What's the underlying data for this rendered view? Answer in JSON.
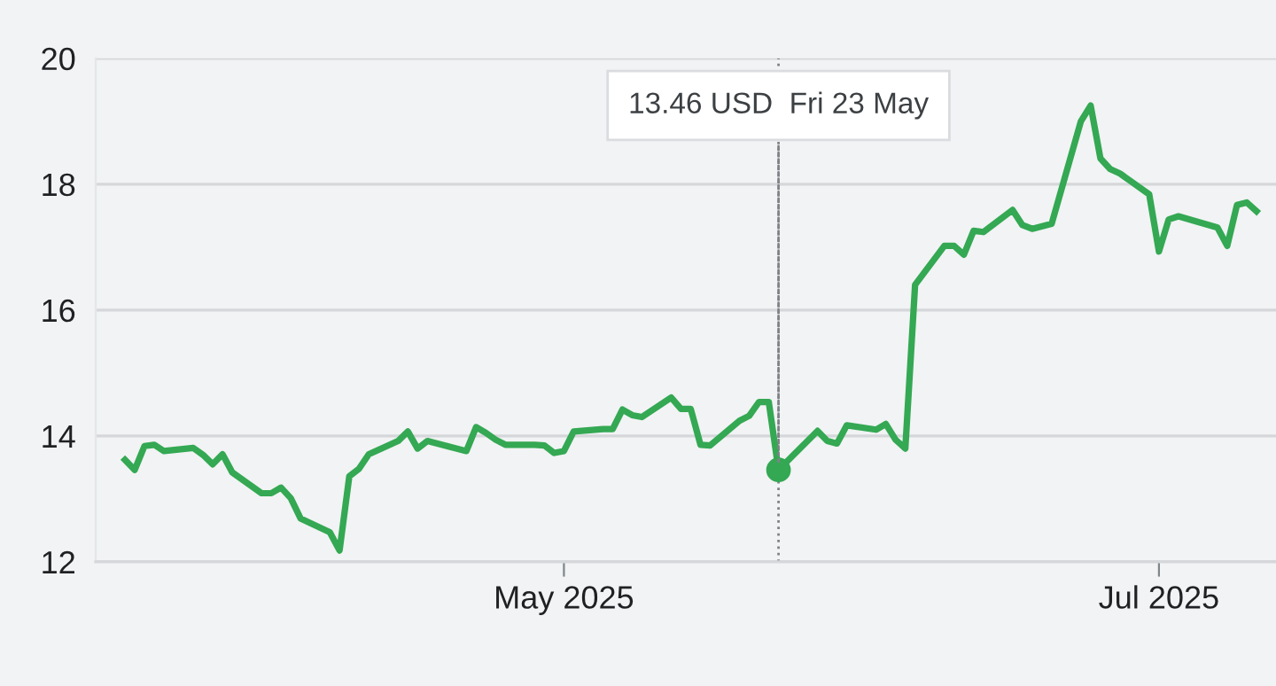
{
  "chart_data": {
    "type": "line",
    "x": [
      "2025-03-17",
      "2025-03-18",
      "2025-03-19",
      "2025-03-20",
      "2025-03-21",
      "2025-03-24",
      "2025-03-25",
      "2025-03-26",
      "2025-03-27",
      "2025-03-28",
      "2025-03-31",
      "2025-04-01",
      "2025-04-02",
      "2025-04-03",
      "2025-04-04",
      "2025-04-07",
      "2025-04-08",
      "2025-04-09",
      "2025-04-10",
      "2025-04-11",
      "2025-04-14",
      "2025-04-15",
      "2025-04-16",
      "2025-04-17",
      "2025-04-21",
      "2025-04-22",
      "2025-04-23",
      "2025-04-24",
      "2025-04-25",
      "2025-04-28",
      "2025-04-29",
      "2025-04-30",
      "2025-05-01",
      "2025-05-02",
      "2025-05-05",
      "2025-05-06",
      "2025-05-07",
      "2025-05-08",
      "2025-05-09",
      "2025-05-12",
      "2025-05-13",
      "2025-05-14",
      "2025-05-15",
      "2025-05-16",
      "2025-05-19",
      "2025-05-20",
      "2025-05-21",
      "2025-05-22",
      "2025-05-23",
      "2025-05-27",
      "2025-05-28",
      "2025-05-29",
      "2025-05-30",
      "2025-06-02",
      "2025-06-03",
      "2025-06-04",
      "2025-06-05",
      "2025-06-06",
      "2025-06-09",
      "2025-06-10",
      "2025-06-11",
      "2025-06-12",
      "2025-06-13",
      "2025-06-16",
      "2025-06-17",
      "2025-06-18",
      "2025-06-20",
      "2025-06-23",
      "2025-06-24",
      "2025-06-25",
      "2025-06-26",
      "2025-06-27",
      "2025-06-30",
      "2025-07-01",
      "2025-07-02",
      "2025-07-03",
      "2025-07-07",
      "2025-07-08",
      "2025-07-09",
      "2025-07-10",
      "2025-07-11"
    ],
    "series": [
      {
        "color": "#34a853",
        "values": [
          13.62,
          13.46,
          13.84,
          13.86,
          13.76,
          13.81,
          13.7,
          13.55,
          13.71,
          13.42,
          13.09,
          13.09,
          13.18,
          13.01,
          12.69,
          12.47,
          12.18,
          13.36,
          13.48,
          13.71,
          13.92,
          14.07,
          13.8,
          13.92,
          13.76,
          14.14,
          14.05,
          13.94,
          13.86,
          13.86,
          13.85,
          13.73,
          13.76,
          14.07,
          14.11,
          14.11,
          14.42,
          14.33,
          14.3,
          14.61,
          14.43,
          14.43,
          13.86,
          13.85,
          14.24,
          14.32,
          14.54,
          14.54,
          13.46,
          14.08,
          13.92,
          13.88,
          14.17,
          14.1,
          14.19,
          13.94,
          13.8,
          16.4,
          17.02,
          17.02,
          16.88,
          17.26,
          17.24,
          17.59,
          17.35,
          17.29,
          17.37,
          19.0,
          19.25,
          18.41,
          18.24,
          18.17,
          17.84,
          16.93,
          17.44,
          17.49,
          17.31,
          17.02,
          17.67,
          17.71,
          17.57
        ]
      }
    ],
    "xlim": [
      "2025-03-14",
      "2025-07-13"
    ],
    "xticks": [
      {
        "value": "2025-05-01",
        "label": "May 2025"
      },
      {
        "value": "2025-07-01",
        "label": "Jul 2025"
      }
    ],
    "ylim": [
      12,
      20
    ],
    "yticks": [
      12,
      14,
      16,
      18,
      20
    ],
    "grid": "y",
    "ref_lines": [
      {
        "axis": "x",
        "value": "2025-05-23",
        "color": "#7f8287",
        "line_style": "dotted"
      }
    ],
    "annotations": [
      {
        "text": "13.46 USD  Fri 23 May",
        "x": "2025-05-23",
        "y": 13.46
      }
    ]
  }
}
